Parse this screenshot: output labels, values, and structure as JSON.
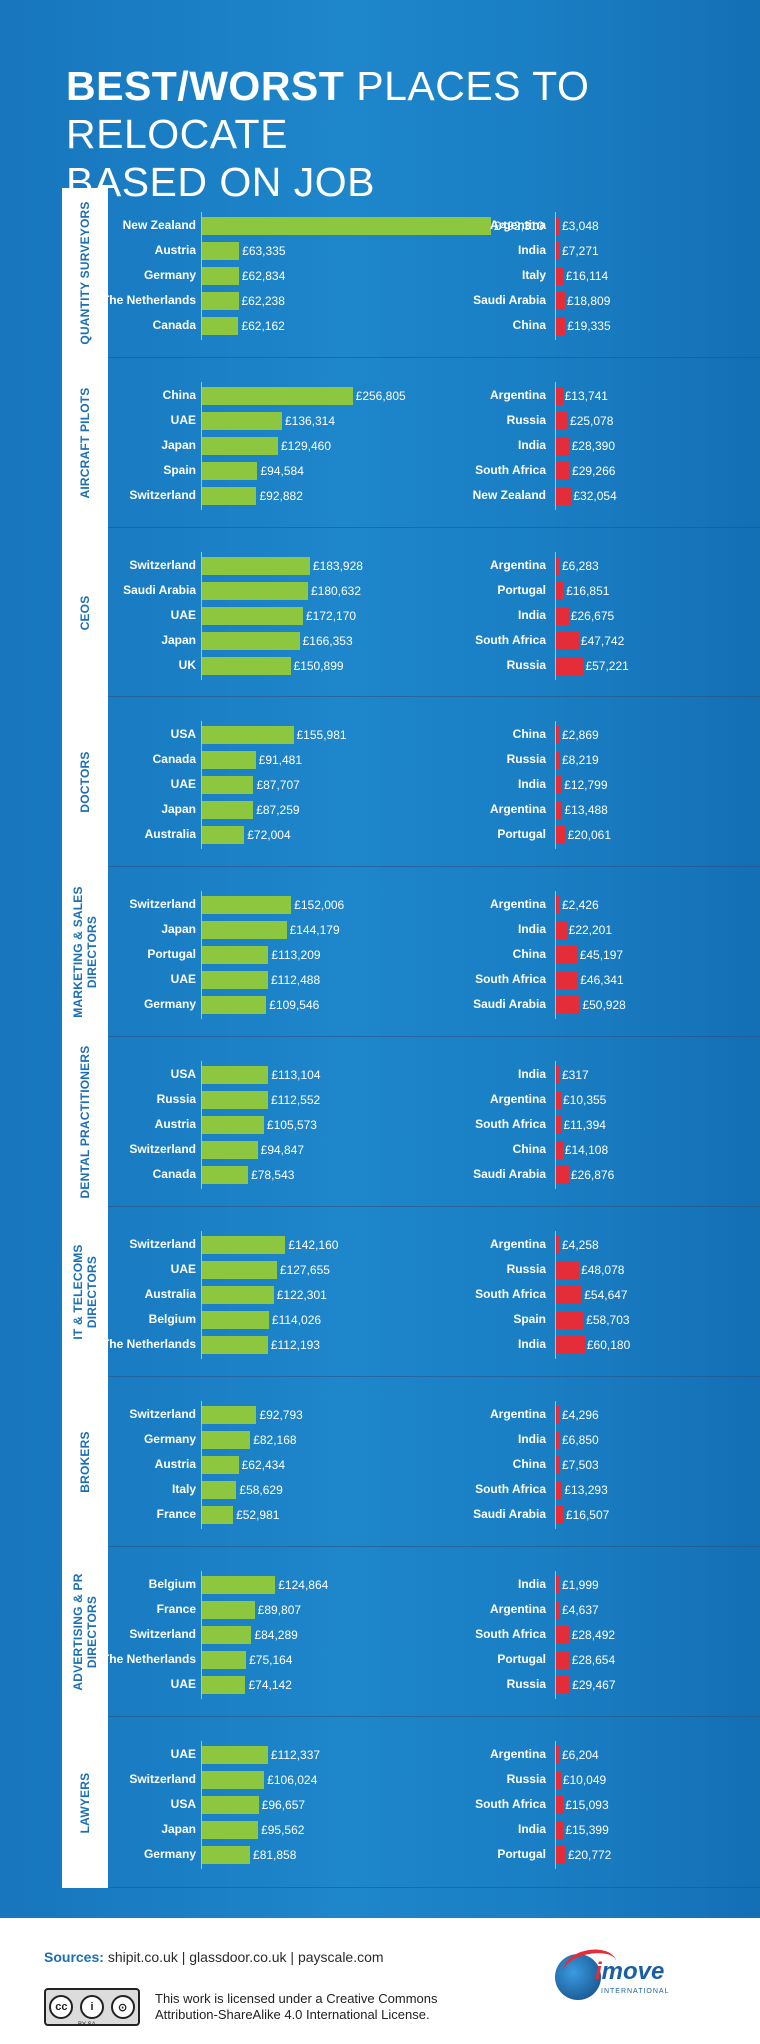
{
  "title": {
    "bold": "BEST/WORST",
    "rest": "PLACES TO RELOCATE",
    "line2": "BASED ON JOB"
  },
  "colors": {
    "best": "#8dc63f",
    "worst": "#e42d38",
    "background": "#1a7fc4"
  },
  "chart_data": {
    "type": "bar",
    "title": "BEST/WORST PLACES TO RELOCATE BASED ON JOB",
    "unit": "£",
    "best_xlim": [
      0,
      492310
    ],
    "sections": [
      {
        "job": "QUANTITY SURVEYORS",
        "best": [
          {
            "country": "New Zealand",
            "value": 492310,
            "label": "£492,310"
          },
          {
            "country": "Austria",
            "value": 63335,
            "label": "£63,335"
          },
          {
            "country": "Germany",
            "value": 62834,
            "label": "£62,834"
          },
          {
            "country": "The Netherlands",
            "value": 62238,
            "label": "£62,238"
          },
          {
            "country": "Canada",
            "value": 62162,
            "label": "£62,162"
          }
        ],
        "worst": [
          {
            "country": "Argentina",
            "value": 3048,
            "label": "£3,048"
          },
          {
            "country": "India",
            "value": 7271,
            "label": "£7,271"
          },
          {
            "country": "Italy",
            "value": 16114,
            "label": "£16,114"
          },
          {
            "country": "Saudi Arabia",
            "value": 18809,
            "label": "£18,809"
          },
          {
            "country": "China",
            "value": 19335,
            "label": "£19,335"
          }
        ]
      },
      {
        "job": "AIRCRAFT PILOTS",
        "best": [
          {
            "country": "China",
            "value": 256805,
            "label": "£256,805"
          },
          {
            "country": "UAE",
            "value": 136314,
            "label": "£136,314"
          },
          {
            "country": "Japan",
            "value": 129460,
            "label": "£129,460"
          },
          {
            "country": "Spain",
            "value": 94584,
            "label": "£94,584"
          },
          {
            "country": "Switzerland",
            "value": 92882,
            "label": "£92,882"
          }
        ],
        "worst": [
          {
            "country": "Argentina",
            "value": 13741,
            "label": "£13,741"
          },
          {
            "country": "Russia",
            "value": 25078,
            "label": "£25,078"
          },
          {
            "country": "India",
            "value": 28390,
            "label": "£28,390"
          },
          {
            "country": "South Africa",
            "value": 29266,
            "label": "£29,266"
          },
          {
            "country": "New Zealand",
            "value": 32054,
            "label": "£32,054"
          }
        ]
      },
      {
        "job": "CEOs",
        "best": [
          {
            "country": "Switzerland",
            "value": 183928,
            "label": "£183,928"
          },
          {
            "country": "Saudi Arabia",
            "value": 180632,
            "label": "£180,632"
          },
          {
            "country": "UAE",
            "value": 172170,
            "label": "£172,170"
          },
          {
            "country": "Japan",
            "value": 166353,
            "label": "£166,353"
          },
          {
            "country": "UK",
            "value": 150899,
            "label": "£150,899"
          }
        ],
        "worst": [
          {
            "country": "Argentina",
            "value": 6283,
            "label": "£6,283"
          },
          {
            "country": "Portugal",
            "value": 16851,
            "label": "£16,851"
          },
          {
            "country": "India",
            "value": 26675,
            "label": "£26,675"
          },
          {
            "country": "South Africa",
            "value": 47742,
            "label": "£47,742"
          },
          {
            "country": "Russia",
            "value": 57221,
            "label": "£57,221"
          }
        ]
      },
      {
        "job": "DOCTORS",
        "best": [
          {
            "country": "USA",
            "value": 155981,
            "label": "£155,981"
          },
          {
            "country": "Canada",
            "value": 91481,
            "label": "£91,481"
          },
          {
            "country": "UAE",
            "value": 87707,
            "label": "£87,707"
          },
          {
            "country": "Japan",
            "value": 87259,
            "label": "£87,259"
          },
          {
            "country": "Australia",
            "value": 72004,
            "label": "£72,004"
          }
        ],
        "worst": [
          {
            "country": "China",
            "value": 2869,
            "label": "£2,869"
          },
          {
            "country": "Russia",
            "value": 8219,
            "label": "£8,219"
          },
          {
            "country": "India",
            "value": 12799,
            "label": "£12,799"
          },
          {
            "country": "Argentina",
            "value": 13488,
            "label": "£13,488"
          },
          {
            "country": "Portugal",
            "value": 20061,
            "label": "£20,061"
          }
        ]
      },
      {
        "job": "MARKETING & SALES DIRECTORS",
        "best": [
          {
            "country": "Switzerland",
            "value": 152006,
            "label": "£152,006"
          },
          {
            "country": "Japan",
            "value": 144179,
            "label": "£144,179"
          },
          {
            "country": "Portugal",
            "value": 113209,
            "label": "£113,209"
          },
          {
            "country": "UAE",
            "value": 112488,
            "label": "£112,488"
          },
          {
            "country": "Germany",
            "value": 109546,
            "label": "£109,546"
          }
        ],
        "worst": [
          {
            "country": "Argentina",
            "value": 2426,
            "label": "£2,426"
          },
          {
            "country": "India",
            "value": 22201,
            "label": "£22,201"
          },
          {
            "country": "China",
            "value": 45197,
            "label": "£45,197"
          },
          {
            "country": "South Africa",
            "value": 46341,
            "label": "£46,341"
          },
          {
            "country": "Saudi Arabia",
            "value": 50928,
            "label": "£50,928"
          }
        ]
      },
      {
        "job": "DENTAL PRACTITIONERS",
        "best": [
          {
            "country": "USA",
            "value": 113104,
            "label": "£113,104"
          },
          {
            "country": "Russia",
            "value": 112552,
            "label": "£112,552"
          },
          {
            "country": "Austria",
            "value": 105573,
            "label": "£105,573"
          },
          {
            "country": "Switzerland",
            "value": 94847,
            "label": "£94,847"
          },
          {
            "country": "Canada",
            "value": 78543,
            "label": "£78,543"
          }
        ],
        "worst": [
          {
            "country": "India",
            "value": 317,
            "label": "£317"
          },
          {
            "country": "Argentina",
            "value": 10355,
            "label": "£10,355"
          },
          {
            "country": "South Africa",
            "value": 11394,
            "label": "£11,394"
          },
          {
            "country": "China",
            "value": 14108,
            "label": "£14,108"
          },
          {
            "country": "Saudi Arabia",
            "value": 26876,
            "label": "£26,876"
          }
        ]
      },
      {
        "job": "IT & TELECOMS DIRECTORS",
        "best": [
          {
            "country": "Switzerland",
            "value": 142160,
            "label": "£142,160"
          },
          {
            "country": "UAE",
            "value": 127655,
            "label": "£127,655"
          },
          {
            "country": "Australia",
            "value": 122301,
            "label": "£122,301"
          },
          {
            "country": "Belgium",
            "value": 114026,
            "label": "£114,026"
          },
          {
            "country": "The Netherlands",
            "value": 112193,
            "label": "£112,193"
          }
        ],
        "worst": [
          {
            "country": "Argentina",
            "value": 4258,
            "label": "£4,258"
          },
          {
            "country": "Russia",
            "value": 48078,
            "label": "£48,078"
          },
          {
            "country": "South Africa",
            "value": 54647,
            "label": "£54,647"
          },
          {
            "country": "Spain",
            "value": 58703,
            "label": "£58,703"
          },
          {
            "country": "India",
            "value": 60180,
            "label": "£60,180"
          }
        ]
      },
      {
        "job": "BROKERS",
        "best": [
          {
            "country": "Switzerland",
            "value": 92793,
            "label": "£92,793"
          },
          {
            "country": "Germany",
            "value": 82168,
            "label": "£82,168"
          },
          {
            "country": "Austria",
            "value": 62434,
            "label": "£62,434"
          },
          {
            "country": "Italy",
            "value": 58629,
            "label": "£58,629"
          },
          {
            "country": "France",
            "value": 52981,
            "label": "£52,981"
          }
        ],
        "worst": [
          {
            "country": "Argentina",
            "value": 4296,
            "label": "£4,296"
          },
          {
            "country": "India",
            "value": 6850,
            "label": "£6,850"
          },
          {
            "country": "China",
            "value": 7503,
            "label": "£7,503"
          },
          {
            "country": "South Africa",
            "value": 13293,
            "label": "£13,293"
          },
          {
            "country": "Saudi Arabia",
            "value": 16507,
            "label": "£16,507"
          }
        ]
      },
      {
        "job": "ADVERTISING & PR DIRECTORS",
        "best": [
          {
            "country": "Belgium",
            "value": 124864,
            "label": "£124,864"
          },
          {
            "country": "France",
            "value": 89807,
            "label": "£89,807"
          },
          {
            "country": "Switzerland",
            "value": 84289,
            "label": "£84,289"
          },
          {
            "country": "The Netherlands",
            "value": 75164,
            "label": "£75,164"
          },
          {
            "country": "UAE",
            "value": 74142,
            "label": "£74,142"
          }
        ],
        "worst": [
          {
            "country": "India",
            "value": 1999,
            "label": "£1,999"
          },
          {
            "country": "Argentina",
            "value": 4637,
            "label": "£4,637"
          },
          {
            "country": "South Africa",
            "value": 28492,
            "label": "£28,492"
          },
          {
            "country": "Portugal",
            "value": 28654,
            "label": "£28,654"
          },
          {
            "country": "Russia",
            "value": 29467,
            "label": "£29,467"
          }
        ]
      },
      {
        "job": "LAWYERS",
        "best": [
          {
            "country": "UAE",
            "value": 112337,
            "label": "£112,337"
          },
          {
            "country": "Switzerland",
            "value": 106024,
            "label": "£106,024"
          },
          {
            "country": "USA",
            "value": 96657,
            "label": "£96,657"
          },
          {
            "country": "Japan",
            "value": 95562,
            "label": "£95,562"
          },
          {
            "country": "Germany",
            "value": 81858,
            "label": "£81,858"
          }
        ],
        "worst": [
          {
            "country": "Argentina",
            "value": 6204,
            "label": "£6,204"
          },
          {
            "country": "Russia",
            "value": 10049,
            "label": "£10,049"
          },
          {
            "country": "South Africa",
            "value": 15093,
            "label": "£15,093"
          },
          {
            "country": "India",
            "value": 15399,
            "label": "£15,399"
          },
          {
            "country": "Portugal",
            "value": 20772,
            "label": "£20,772"
          }
        ]
      }
    ]
  },
  "footer": {
    "sources_label": "Sources:",
    "sources_text": "shipit.co.uk | glassdoor.co.uk | payscale.com",
    "license_line1": "This work is licensed under a Creative Commons",
    "license_line2": "Attribution-ShareAlike 4.0 International License.",
    "cc_badge": [
      "cc",
      "i",
      "⊙"
    ],
    "cc_sub": "BY   SA",
    "logo_main": "move",
    "logo_prefix": "i",
    "logo_sub": "INTERNATIONAL"
  }
}
